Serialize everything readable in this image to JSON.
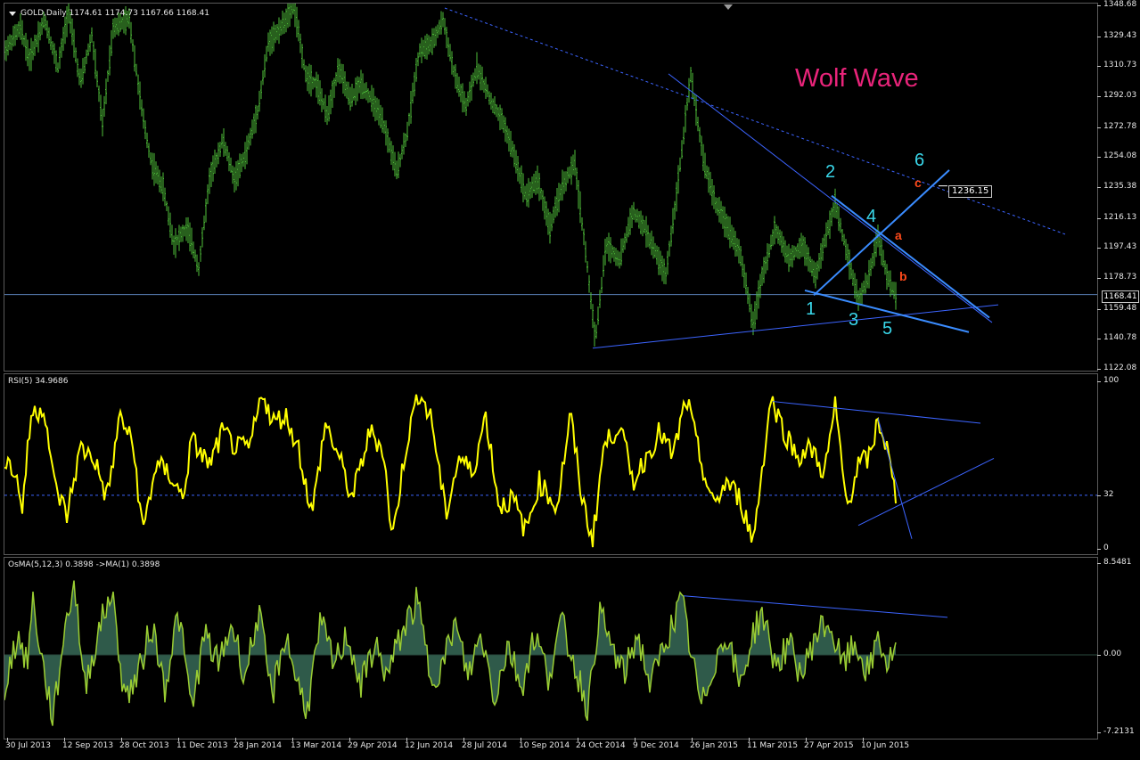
{
  "header": {
    "symbol_label": "GOLD,Daily",
    "ohlc": "1174.61 1174.73 1167.66 1168.41"
  },
  "annotation": {
    "title": "Wolf Wave",
    "wave_points": [
      "1",
      "2",
      "3",
      "4",
      "5",
      "6"
    ],
    "sub_points": [
      "a",
      "b",
      "c"
    ],
    "target_price": "1236.15"
  },
  "current_price": "1168.41",
  "colors": {
    "background": "#000000",
    "price_bars": "#4fbf3a",
    "rsi_line": "#ffff00",
    "osma_line": "#9acd32",
    "osma_fill": "#2f5a4a",
    "trendline": "#3c64ff",
    "wolf_lines": "#3a8cff",
    "wave_label": "#39d7ea",
    "sub_label": "#ff4a1a",
    "title": "#e9247a"
  },
  "chart_data": [
    {
      "type": "ohlc",
      "name": "GOLD,Daily",
      "ylim": [
        1122.08,
        1348.68
      ],
      "y_ticks": [
        "1348.68",
        "1329.43",
        "1310.73",
        "1292.03",
        "1272.78",
        "1254.08",
        "1235.38",
        "1216.13",
        "1197.43",
        "1178.73",
        "1159.48",
        "1140.78",
        "1122.08"
      ],
      "x_ticks": [
        "30 Jul 2013",
        "12 Sep 2013",
        "28 Oct 2013",
        "11 Dec 2013",
        "28 Jan 2014",
        "13 Mar 2014",
        "29 Apr 2014",
        "12 Jun 2014",
        "28 Jul 2014",
        "10 Sep 2014",
        "24 Oct 2014",
        "9 Dec 2014",
        "26 Jan 2015",
        "11 Mar 2015",
        "27 Apr 2015",
        "10 Jun 2015"
      ],
      "path": [
        [
          0,
          1320
        ],
        [
          18,
          1335
        ],
        [
          28,
          1315
        ],
        [
          45,
          1340
        ],
        [
          60,
          1310
        ],
        [
          72,
          1345
        ],
        [
          85,
          1300
        ],
        [
          98,
          1330
        ],
        [
          110,
          1275
        ],
        [
          122,
          1335
        ],
        [
          140,
          1340
        ],
        [
          155,
          1280
        ],
        [
          165,
          1250
        ],
        [
          178,
          1235
        ],
        [
          190,
          1200
        ],
        [
          205,
          1210
        ],
        [
          218,
          1185
        ],
        [
          230,
          1240
        ],
        [
          245,
          1265
        ],
        [
          258,
          1240
        ],
        [
          270,
          1255
        ],
        [
          285,
          1285
        ],
        [
          296,
          1325
        ],
        [
          310,
          1335
        ],
        [
          325,
          1348
        ],
        [
          338,
          1305
        ],
        [
          350,
          1300
        ],
        [
          362,
          1280
        ],
        [
          375,
          1310
        ],
        [
          388,
          1290
        ],
        [
          400,
          1300
        ],
        [
          412,
          1290
        ],
        [
          425,
          1275
        ],
        [
          440,
          1245
        ],
        [
          452,
          1270
        ],
        [
          465,
          1320
        ],
        [
          480,
          1325
        ],
        [
          492,
          1340
        ],
        [
          505,
          1305
        ],
        [
          518,
          1285
        ],
        [
          530,
          1310
        ],
        [
          545,
          1290
        ],
        [
          560,
          1275
        ],
        [
          572,
          1255
        ],
        [
          585,
          1230
        ],
        [
          598,
          1240
        ],
        [
          612,
          1210
        ],
        [
          625,
          1235
        ],
        [
          640,
          1250
        ],
        [
          652,
          1195
        ],
        [
          663,
          1140
        ],
        [
          675,
          1200
        ],
        [
          690,
          1190
        ],
        [
          705,
          1220
        ],
        [
          718,
          1210
        ],
        [
          730,
          1195
        ],
        [
          742,
          1180
        ],
        [
          755,
          1235
        ],
        [
          770,
          1305
        ],
        [
          785,
          1250
        ],
        [
          798,
          1225
        ],
        [
          812,
          1210
        ],
        [
          825,
          1195
        ],
        [
          840,
          1150
        ],
        [
          850,
          1180
        ],
        [
          865,
          1210
        ],
        [
          880,
          1190
        ],
        [
          895,
          1200
        ],
        [
          910,
          1180
        ],
        [
          922,
          1205
        ],
        [
          932,
          1225
        ],
        [
          945,
          1195
        ],
        [
          958,
          1165
        ],
        [
          970,
          1180
        ],
        [
          980,
          1205
        ],
        [
          990,
          1180
        ],
        [
          1000,
          1168
        ]
      ],
      "current": 1168.41,
      "trendlines": [
        {
          "from": [
            494,
            1347
          ],
          "to": [
            1190,
            1206
          ],
          "style": "dashed"
        },
        {
          "from": [
            660,
            1135
          ],
          "to": [
            1115,
            1162
          ],
          "style": "solid"
        },
        {
          "from": [
            745,
            1306
          ],
          "to": [
            1108,
            1151
          ],
          "style": "solid"
        }
      ],
      "wolf_lines": [
        {
          "from": [
            898,
            1171
          ],
          "to": [
            1082,
            1145
          ]
        },
        {
          "from": [
            908,
            1168
          ],
          "to": [
            1060,
            1246
          ]
        },
        {
          "from": [
            928,
            1230
          ],
          "to": [
            1105,
            1154
          ]
        }
      ],
      "target": 1236.15
    },
    {
      "type": "line",
      "name": "RSI(5)",
      "value_label": "34.9686",
      "ylim": [
        0,
        100
      ],
      "y_ticks": [
        "100",
        "32",
        "0"
      ],
      "level": 32,
      "path": [
        [
          0,
          55
        ],
        [
          12,
          45
        ],
        [
          20,
          25
        ],
        [
          30,
          80
        ],
        [
          45,
          85
        ],
        [
          55,
          40
        ],
        [
          70,
          20
        ],
        [
          85,
          60
        ],
        [
          100,
          55
        ],
        [
          115,
          30
        ],
        [
          130,
          80
        ],
        [
          145,
          60
        ],
        [
          155,
          10
        ],
        [
          170,
          50
        ],
        [
          185,
          45
        ],
        [
          200,
          30
        ],
        [
          210,
          65
        ],
        [
          230,
          50
        ],
        [
          245,
          70
        ],
        [
          260,
          60
        ],
        [
          275,
          60
        ],
        [
          290,
          95
        ],
        [
          300,
          75
        ],
        [
          315,
          80
        ],
        [
          330,
          60
        ],
        [
          345,
          20
        ],
        [
          360,
          75
        ],
        [
          375,
          55
        ],
        [
          390,
          30
        ],
        [
          410,
          70
        ],
        [
          425,
          60
        ],
        [
          435,
          5
        ],
        [
          450,
          60
        ],
        [
          465,
          95
        ],
        [
          480,
          75
        ],
        [
          495,
          20
        ],
        [
          510,
          55
        ],
        [
          525,
          45
        ],
        [
          540,
          80
        ],
        [
          555,
          25
        ],
        [
          570,
          30
        ],
        [
          585,
          10
        ],
        [
          600,
          40
        ],
        [
          620,
          25
        ],
        [
          635,
          80
        ],
        [
          648,
          30
        ],
        [
          660,
          5
        ],
        [
          672,
          60
        ],
        [
          690,
          75
        ],
        [
          705,
          40
        ],
        [
          720,
          55
        ],
        [
          735,
          70
        ],
        [
          750,
          55
        ],
        [
          765,
          90
        ],
        [
          780,
          55
        ],
        [
          795,
          25
        ],
        [
          810,
          40
        ],
        [
          825,
          30
        ],
        [
          840,
          5
        ],
        [
          860,
          90
        ],
        [
          875,
          70
        ],
        [
          890,
          55
        ],
        [
          905,
          60
        ],
        [
          920,
          45
        ],
        [
          932,
          85
        ],
        [
          945,
          25
        ],
        [
          958,
          50
        ],
        [
          972,
          55
        ],
        [
          980,
          78
        ],
        [
          990,
          60
        ],
        [
          1000,
          30
        ]
      ],
      "trendlines": [
        {
          "from": [
            862,
            88
          ],
          "to": [
            1095,
            75
          ]
        },
        {
          "from": [
            958,
            14
          ],
          "to": [
            1110,
            54
          ]
        },
        {
          "from": [
            980,
            78
          ],
          "to": [
            1018,
            6
          ]
        }
      ]
    },
    {
      "type": "histogram",
      "name": "OsMA(5,12,3)",
      "value_label": "0.3898  ->MA(1) 0.3898",
      "ylim": [
        -7.2131,
        8.5481
      ],
      "y_ticks": [
        "8.5481",
        "0.00",
        "-7.2131"
      ],
      "path": [
        [
          0,
          -3
        ],
        [
          15,
          2
        ],
        [
          25,
          -1
        ],
        [
          32,
          5
        ],
        [
          45,
          -2
        ],
        [
          55,
          -6
        ],
        [
          65,
          1
        ],
        [
          78,
          7
        ],
        [
          90,
          -3
        ],
        [
          105,
          2
        ],
        [
          120,
          6
        ],
        [
          135,
          -4
        ],
        [
          150,
          -2
        ],
        [
          165,
          3
        ],
        [
          180,
          -3
        ],
        [
          195,
          4
        ],
        [
          210,
          -5
        ],
        [
          225,
          2
        ],
        [
          240,
          -1
        ],
        [
          255,
          3
        ],
        [
          270,
          -2
        ],
        [
          285,
          4
        ],
        [
          300,
          -4
        ],
        [
          315,
          2
        ],
        [
          330,
          -3
        ],
        [
          340,
          -5
        ],
        [
          355,
          3
        ],
        [
          370,
          -1
        ],
        [
          385,
          2
        ],
        [
          400,
          -3
        ],
        [
          415,
          1
        ],
        [
          430,
          -2
        ],
        [
          445,
          2
        ],
        [
          463,
          5
        ],
        [
          478,
          -2
        ],
        [
          492,
          -1
        ],
        [
          505,
          3
        ],
        [
          520,
          -2
        ],
        [
          535,
          2
        ],
        [
          550,
          -4
        ],
        [
          565,
          1
        ],
        [
          580,
          -3
        ],
        [
          595,
          2
        ],
        [
          610,
          -2
        ],
        [
          625,
          3
        ],
        [
          640,
          -1
        ],
        [
          655,
          -5
        ],
        [
          667,
          4
        ],
        [
          680,
          1
        ],
        [
          695,
          -2
        ],
        [
          710,
          2
        ],
        [
          725,
          -3
        ],
        [
          740,
          1
        ],
        [
          760,
          5
        ],
        [
          775,
          -2
        ],
        [
          782,
          -5
        ],
        [
          795,
          -1
        ],
        [
          810,
          2
        ],
        [
          825,
          -3
        ],
        [
          840,
          2
        ],
        [
          850,
          4
        ],
        [
          865,
          -1
        ],
        [
          880,
          1
        ],
        [
          895,
          -2
        ],
        [
          910,
          2
        ],
        [
          925,
          3
        ],
        [
          940,
          -1
        ],
        [
          955,
          1
        ],
        [
          970,
          -2
        ],
        [
          980,
          2
        ],
        [
          990,
          -1
        ],
        [
          1000,
          0.4
        ]
      ],
      "trendlines": [
        {
          "from": [
            762,
            5.5
          ],
          "to": [
            1058,
            3.5
          ]
        }
      ]
    }
  ]
}
